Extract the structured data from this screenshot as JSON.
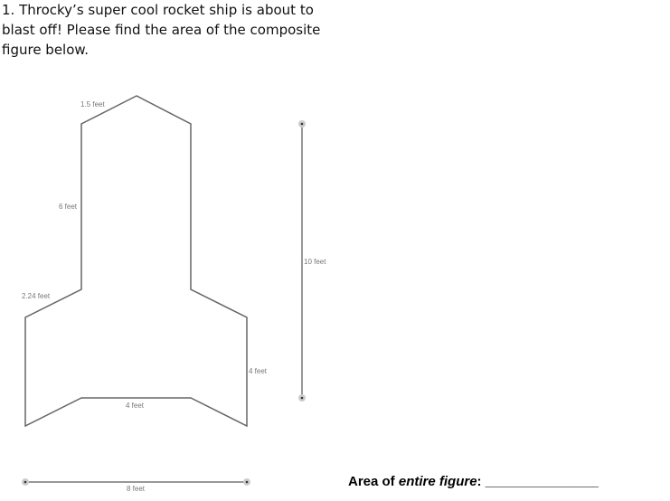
{
  "question": {
    "number": "1.",
    "text": "Throcky’s super cool rocket ship is about to blast off! Please find the area of the composite figure below."
  },
  "figure": {
    "labels": {
      "nose_side": "1.5 feet",
      "body_side": "6 feet",
      "fin_slant": "2.24 feet",
      "fin_side": "4 feet",
      "bottom_inner": "4 feet",
      "total_height": "10 feet",
      "total_width": "8 feet"
    }
  },
  "answer": {
    "prefix": "Area of ",
    "emphasis": "entire figure",
    "suffix": ": ",
    "blank": "_______________"
  }
}
